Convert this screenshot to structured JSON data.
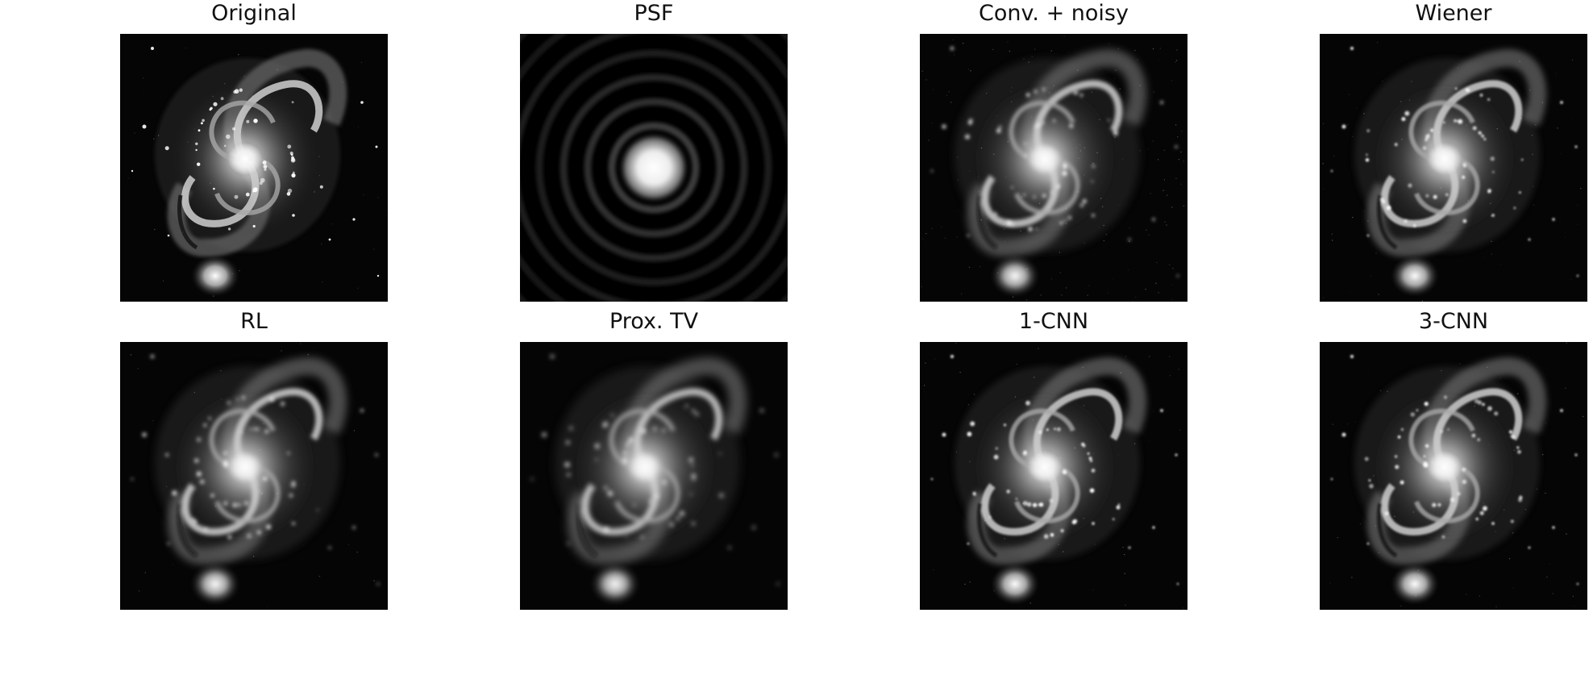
{
  "panels": [
    {
      "title": "Original",
      "image": "galaxy",
      "quality": "sharp"
    },
    {
      "title": "PSF",
      "image": "airy-disk",
      "quality": "psf"
    },
    {
      "title": "Conv. + noisy",
      "image": "galaxy",
      "quality": "blurred-noisy"
    },
    {
      "title": "Wiener",
      "image": "galaxy",
      "quality": "restored"
    },
    {
      "title": "RL",
      "image": "galaxy",
      "quality": "blurred"
    },
    {
      "title": "Prox. TV",
      "image": "galaxy",
      "quality": "smooth"
    },
    {
      "title": "1-CNN",
      "image": "galaxy",
      "quality": "restored"
    },
    {
      "title": "3-CNN",
      "image": "galaxy",
      "quality": "restored"
    }
  ]
}
